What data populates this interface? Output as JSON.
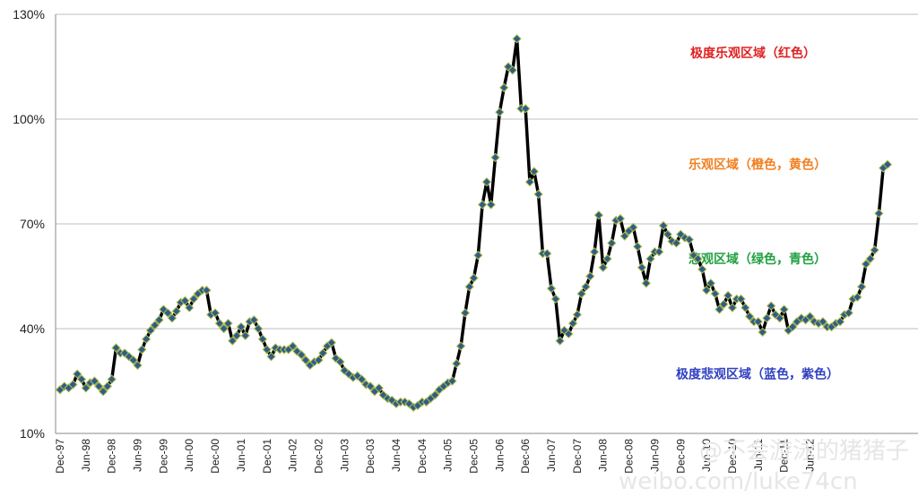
{
  "chart_data": {
    "type": "line",
    "ylim": [
      10,
      130
    ],
    "y_ticks": [
      10,
      40,
      70,
      100,
      130
    ],
    "y_tick_labels": [
      "10%",
      "40%",
      "70%",
      "100%",
      "130%"
    ],
    "grid": true,
    "x_tick_labels": [
      "Dec-97",
      "Jun-98",
      "Dec-98",
      "Jun-99",
      "Dec-99",
      "Jun-00",
      "Dec-00",
      "Jun-01",
      "Dec-01",
      "Jun-02",
      "Dec-02",
      "Jun-03",
      "Dec-03",
      "Jun-04",
      "Dec-04",
      "Jun-05",
      "Dec-05",
      "Jun-06",
      "Dec-06",
      "Jun-07",
      "Dec-07",
      "Jun-08",
      "Dec-08",
      "Jun-09",
      "Dec-09",
      "Jun-10",
      "Dec-10",
      "Jun-11",
      "Dec-11",
      "Jun-12"
    ],
    "line_color": "#000000",
    "marker_color": "#2e5d8a",
    "marker_edge": "#b5c14a",
    "annotations": [
      {
        "text": "极度乐观区域（红色）",
        "color": "#e02020",
        "y": 119
      },
      {
        "text": "乐观区域（橙色，黄色）",
        "color": "#f08020",
        "y": 87
      },
      {
        "text": "悲观区域（绿色，青色）",
        "color": "#20a040",
        "y": 60
      },
      {
        "text": "极度悲观区域（蓝色，紫色）",
        "color": "#3040c0",
        "y": 27
      }
    ],
    "series": [
      {
        "values": [
          22.5,
          23.5,
          23,
          24,
          27,
          25.5,
          23,
          24.5,
          25,
          23.5,
          22,
          23.5,
          25.5,
          34.5,
          33,
          33,
          32,
          31,
          29.5,
          34,
          37,
          39.5,
          41,
          42.5,
          45.5,
          44.5,
          43,
          45,
          47.5,
          48,
          46,
          48.5,
          50,
          51,
          51,
          44,
          44.5,
          41.5,
          40,
          41.5,
          36.5,
          38,
          40.5,
          38,
          42,
          42.5,
          40,
          37,
          34,
          32,
          34.5,
          34,
          34,
          34,
          35,
          33.5,
          32.5,
          31,
          29.5,
          30.5,
          31,
          33,
          35,
          36,
          31.5,
          30.5,
          28,
          27,
          26,
          26.5,
          25.5,
          24,
          23.5,
          22,
          23,
          21,
          20,
          19.5,
          18.5,
          19,
          19,
          18.5,
          17.5,
          18,
          19,
          19,
          20,
          21,
          22.5,
          23.5,
          24.5,
          25,
          30,
          35,
          44.5,
          52,
          54.5,
          61,
          75.5,
          82,
          75.5,
          89,
          102,
          109,
          115,
          114,
          123,
          103,
          103,
          82,
          85,
          78.5,
          61.5,
          61.5,
          51.5,
          48.5,
          36.5,
          39.5,
          38.5,
          41.5,
          44,
          50,
          52,
          55,
          62,
          72.5,
          57.5,
          60,
          64.5,
          71,
          71.5,
          66.5,
          68,
          69,
          63.5,
          57.5,
          53,
          60,
          62,
          62,
          69.5,
          67,
          65,
          64.5,
          67,
          66,
          65.5,
          61,
          60,
          57,
          51,
          53,
          50,
          45.5,
          47,
          49.5,
          46,
          48.5,
          48.5,
          46,
          43.5,
          42,
          42,
          39,
          43,
          46.5,
          44,
          43,
          45.5,
          39.5,
          40.5,
          42,
          43,
          42.5,
          43.5,
          42,
          41.5,
          42,
          40.5,
          40.5,
          41.5,
          42,
          44,
          44.5,
          48.5,
          49,
          52,
          58.5,
          60,
          62.5,
          73,
          86,
          87
        ]
      }
    ]
  },
  "watermark": {
    "line1": "@不会游泳的猪猪子",
    "line2": "weibo.com/luke74cn"
  }
}
